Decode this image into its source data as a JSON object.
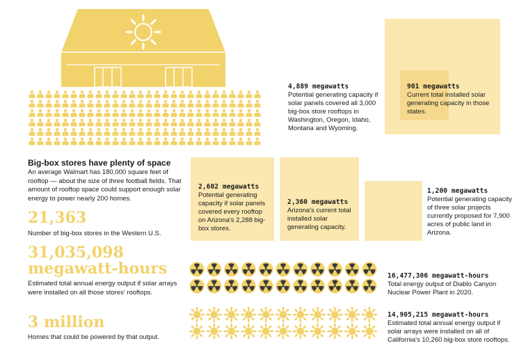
{
  "colors": {
    "yellow": "#f2d26a",
    "light_yellow": "#fbe8b0",
    "mid_yellow": "#f6d98e",
    "dark": "#3a3a3a"
  },
  "icons": {
    "store": "store-building-icon",
    "person": "person-icon",
    "radiation": "radiation-icon",
    "sun": "sun-icon"
  },
  "western_states": {
    "potential": {
      "value": "4,889 megawatts",
      "description": "Potential generating capacity if solar panels covered all 3,000 big-box store rooftops in Washington, Oregon, Idaho, Montana and Wyoming."
    },
    "current": {
      "value": "901 megawatts",
      "description": "Current total installed solar generating capacity in those states."
    }
  },
  "arizona": {
    "potential": {
      "value": "2,602 megawatts",
      "description": "Potential generating capacity if solar panels covered every rooftop on Arizona's 2,288 big-box stores."
    },
    "current": {
      "value": "2,360 megawatts",
      "description": "Arizona's current total installed solar generating capacity."
    },
    "proposed": {
      "value": "1,200 megawatts",
      "description": "Potential generating capacity of three solar projects currently proposed for 7,900 acres of public land in Arizona."
    }
  },
  "intro": {
    "heading": "Big-box stores have plenty of space",
    "body": "An average Walmart has 180,000 square feet of rooftop — about the size of three football fields. That amount of rooftop space could support enough solar energy to power nearly 200 homes."
  },
  "stats": {
    "stores": {
      "value": "21,363",
      "caption": "Number of big-box stores in the Western U.S."
    },
    "energy": {
      "value_line1": "31,035,098",
      "value_line2": "megawatt-hours",
      "caption": "Estimated total annual energy output if solar arrays were installed on all those stores' rooftops."
    },
    "homes": {
      "value": "3 million",
      "caption": "Homes that could be powered by that output."
    }
  },
  "comparisons": {
    "diablo": {
      "value": "16,477,306 megawatt-hours",
      "description": "Total energy output of Diablo Canyon Nuclear Power Plant in 2020."
    },
    "california": {
      "value": "14,905,215 megawatt-hours",
      "description": "Estimated total annual energy output if solar arrays were installed on all of California's 10,260 big-box store rooftops."
    }
  }
}
